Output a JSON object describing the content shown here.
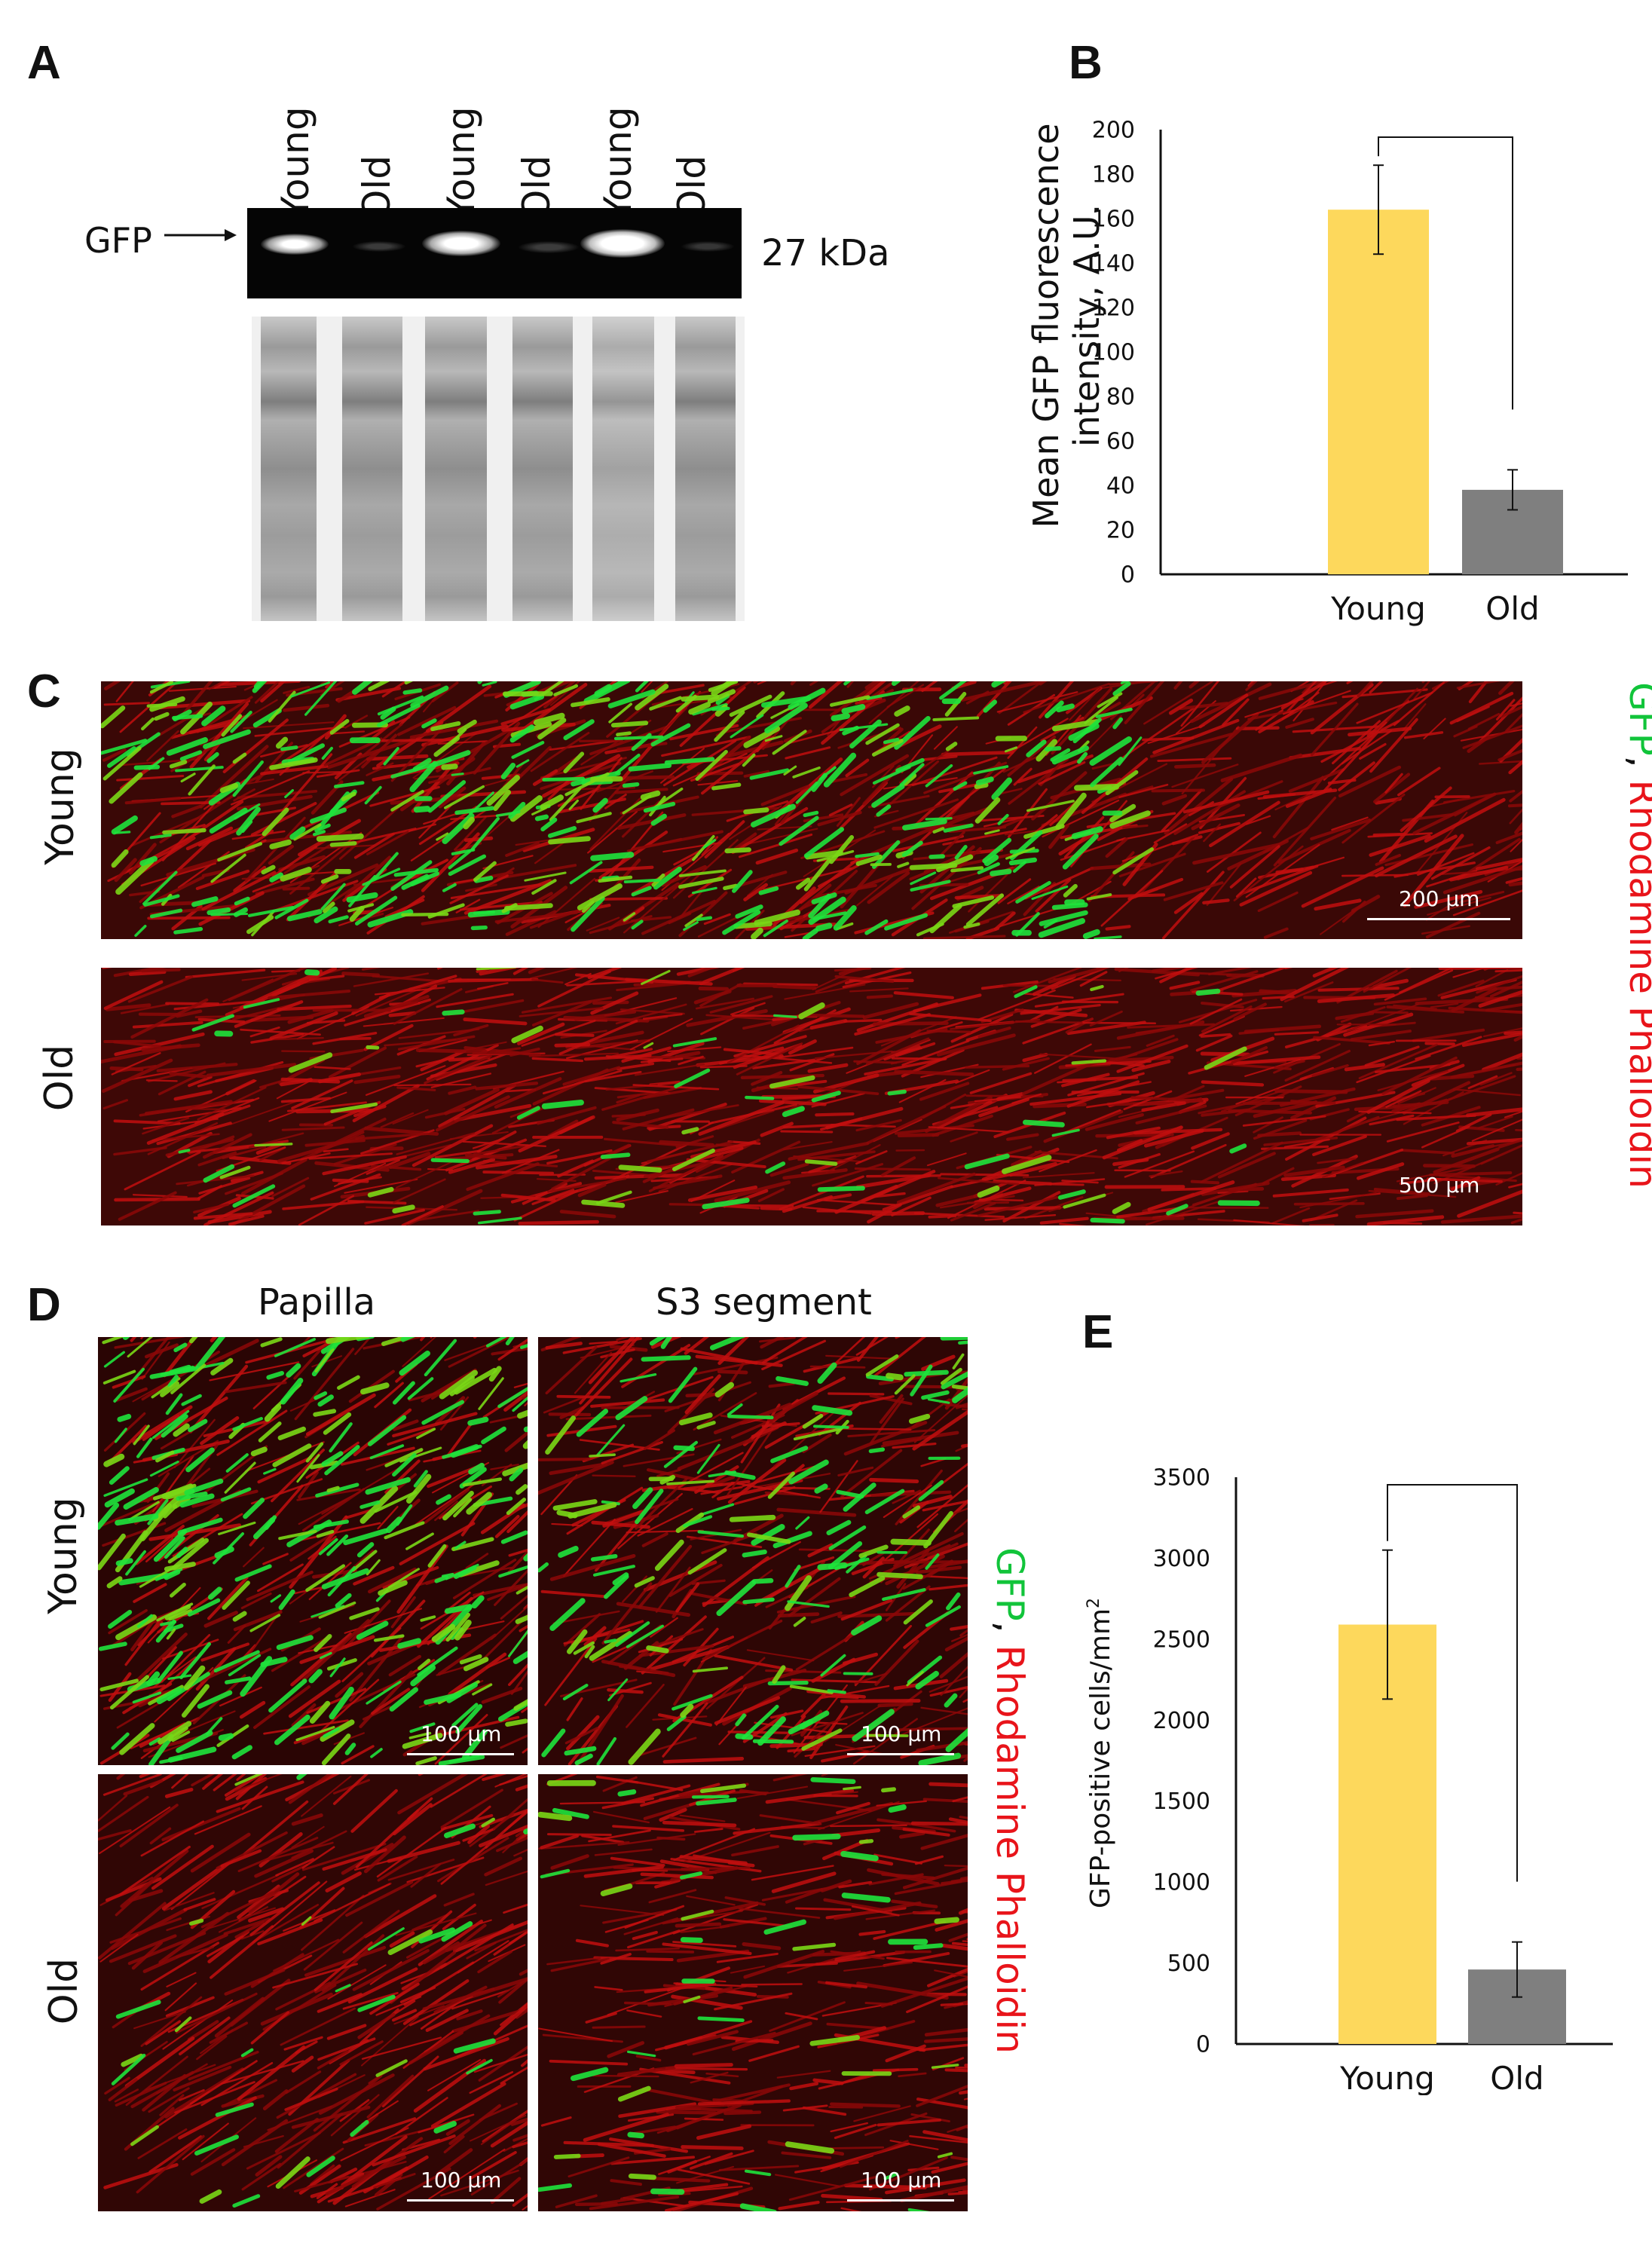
{
  "panels": {
    "a": "A",
    "b": "B",
    "c": "C",
    "d": "D",
    "e": "E"
  },
  "panel_a": {
    "lane_labels": [
      "Young",
      "Old",
      "Young",
      "Old",
      "Young",
      "Old"
    ],
    "band_label": "GFP",
    "size_label": "27 kDa"
  },
  "panel_c": {
    "row_labels": [
      "Young",
      "Old"
    ],
    "stain_gfp": "GFP",
    "stain_sep": ", ",
    "stain_red": "Rhodamine Phalloidin",
    "scale_young": "200 µm",
    "scale_old": "500 µm"
  },
  "panel_d": {
    "col_labels": [
      "Papilla",
      "S3 segment"
    ],
    "row_labels": [
      "Young",
      "Old"
    ],
    "stain_gfp": "GFP",
    "stain_sep": ", ",
    "stain_red": "Rhodamine Phalloidin",
    "scale": "100 µm"
  },
  "colors": {
    "young_bar": "#fdd85c",
    "old_bar": "#7f7f7f",
    "gfp_green": "#11c43a",
    "phalloidin_red": "#e8141a"
  },
  "chart_data": [
    {
      "panel": "B",
      "type": "bar",
      "categories": [
        "Young",
        "Old"
      ],
      "values": [
        164,
        38
      ],
      "error": [
        20,
        9
      ],
      "ylabel_line1": "Mean GFP fluorescence",
      "ylabel_line2": "intensity, A.U.",
      "ylim": [
        0,
        200
      ],
      "yticks": [
        0,
        20,
        40,
        60,
        80,
        100,
        120,
        140,
        160,
        180,
        200
      ],
      "significance_bracket": true
    },
    {
      "panel": "E",
      "type": "bar",
      "categories": [
        "Young",
        "Old"
      ],
      "values": [
        2590,
        460
      ],
      "error": [
        460,
        170
      ],
      "ylabel": "GFP-positive cells/mm",
      "ylabel_sup": "2",
      "ylim": [
        0,
        3500
      ],
      "yticks": [
        0,
        500,
        1000,
        1500,
        2000,
        2500,
        3000,
        3500
      ],
      "significance_bracket": true
    }
  ]
}
